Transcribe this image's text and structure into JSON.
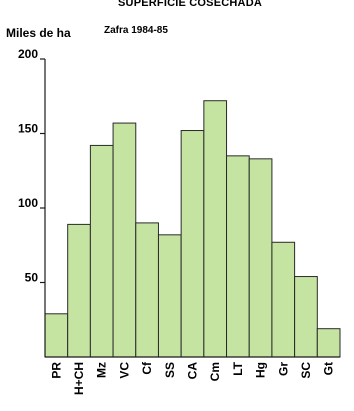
{
  "chart_data": {
    "type": "bar",
    "title": "SUPERFICIE COSECHADA",
    "subtitle": "Zafra 1984-85",
    "ylabel": "Miles de ha",
    "xlabel": "",
    "categories": [
      "PR",
      "H+CH",
      "Mz",
      "VC",
      "Cf",
      "SS",
      "CA",
      "Cm",
      "LT",
      "Hg",
      "Gr",
      "SC",
      "Gt"
    ],
    "values": [
      29,
      89,
      142,
      157,
      90,
      82,
      152,
      172,
      135,
      133,
      77,
      54,
      19
    ],
    "ylim": [
      0,
      200
    ],
    "yticks": [
      50,
      100,
      150,
      200
    ],
    "grid": false,
    "legend": "none",
    "colors": {
      "bar_fill": "#c5e3a1",
      "bar_stroke": "#2a2a2a",
      "axis": "#1a1a1a"
    }
  }
}
